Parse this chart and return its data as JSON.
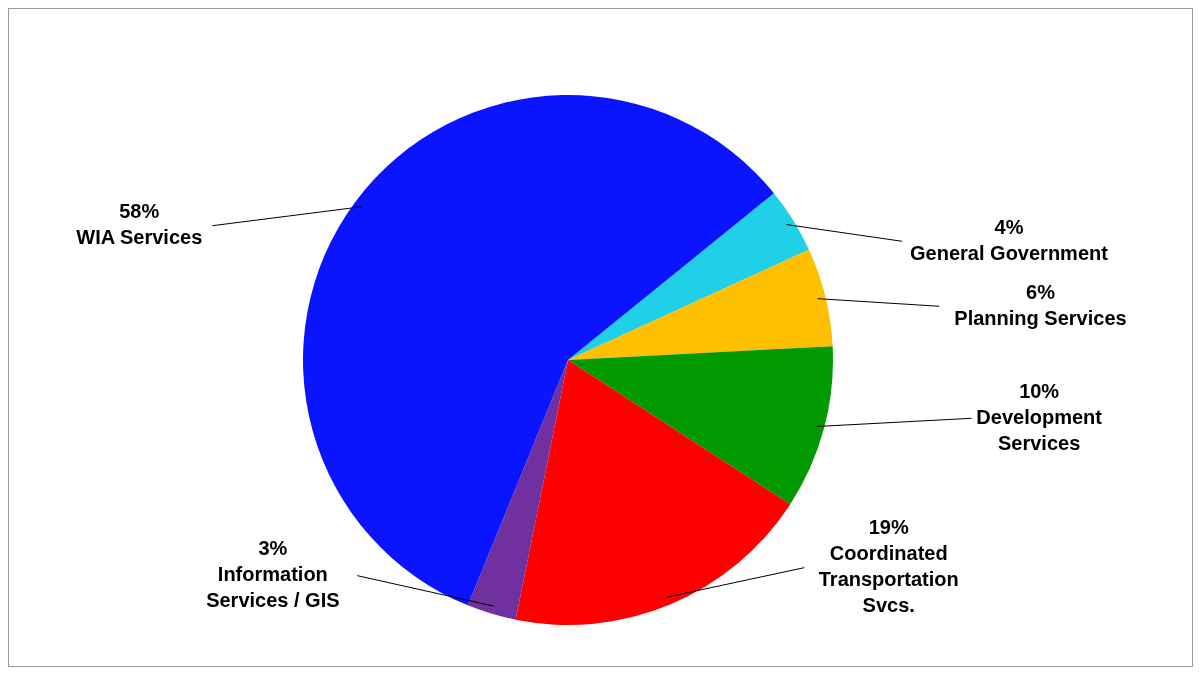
{
  "chart_data": {
    "type": "pie",
    "categories": [
      "General Government",
      "Planning Services",
      "Development Services",
      "Coordinated Transportation Svcs.",
      "Information Services / GIS",
      "WIA Services"
    ],
    "values": [
      4,
      6,
      10,
      19,
      3,
      58
    ],
    "value_labels": [
      "4%",
      "6%",
      "10%",
      "19%",
      "3%",
      "58%"
    ],
    "colors": [
      "#1fd0e8",
      "#ffc000",
      "#009900",
      "#ff0000",
      "#7030a0",
      "#0a14ff"
    ]
  }
}
